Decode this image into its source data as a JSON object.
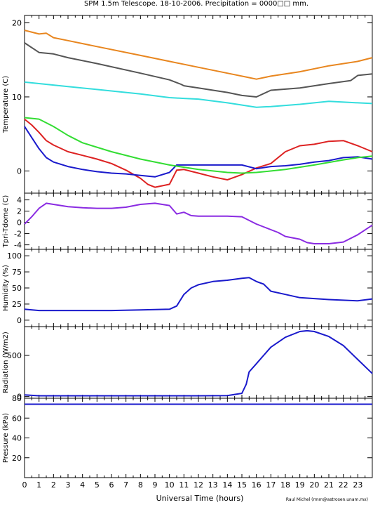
{
  "chart_data": {
    "type": "line",
    "title": "SPM 1.5m Telescope. 18-10-2006. Precipitation = 0000□□ mm.",
    "xlabel": "Universal Time (hours)",
    "credit": "Raul Michel (rmm@astrosen.unam.mx)",
    "xlim": [
      0,
      24
    ],
    "x_ticks": [
      "0",
      "1",
      "2",
      "3",
      "4",
      "5",
      "6",
      "7",
      "8",
      "9",
      "10",
      "11",
      "12",
      "13",
      "14",
      "15",
      "16",
      "17",
      "18",
      "19",
      "20",
      "21",
      "22",
      "23"
    ],
    "panels": [
      {
        "ylabel": "Temperature (C)",
        "ylim": [
          -3,
          21
        ],
        "yticks": [
          0,
          10,
          20
        ],
        "series": [
          {
            "color": "#e8861f",
            "x": [
              0,
              1,
              1.5,
              2,
              3,
              5,
              8,
              10,
              12,
              14,
              15.5,
              16,
              17,
              19,
              21,
              23,
              24
            ],
            "y": [
              19,
              18.5,
              18.6,
              18,
              17.6,
              16.8,
              15.6,
              14.8,
              14,
              13.2,
              12.6,
              12.4,
              12.8,
              13.4,
              14.2,
              14.8,
              15.3
            ]
          },
          {
            "color": "#555555",
            "x": [
              0,
              1,
              1.5,
              2,
              3,
              5,
              8,
              10,
              10.8,
              11,
              12,
              14,
              15,
              16,
              17,
              19,
              21,
              22.5,
              23,
              24
            ],
            "y": [
              17.3,
              16,
              15.9,
              15.8,
              15.3,
              14.5,
              13.2,
              12.3,
              11.7,
              11.5,
              11.2,
              10.6,
              10.2,
              10,
              10.9,
              11.2,
              11.8,
              12.2,
              12.9,
              13.1
            ]
          },
          {
            "color": "#33dddd",
            "x": [
              0,
              1,
              2,
              3,
              5,
              8,
              10,
              11,
              12,
              14,
              16,
              17,
              19,
              21,
              23,
              24
            ],
            "y": [
              12,
              11.8,
              11.6,
              11.4,
              11,
              10.4,
              9.9,
              9.8,
              9.7,
              9.2,
              8.6,
              8.7,
              9,
              9.4,
              9.2,
              9.1
            ]
          },
          {
            "color": "#dd2222",
            "x": [
              0,
              0.5,
              1,
              1.5,
              2,
              3,
              4,
              5,
              6,
              7,
              8,
              8.5,
              9,
              10,
              10.5,
              11,
              12,
              13,
              14,
              15,
              16,
              17,
              18,
              19,
              20,
              21,
              22,
              23,
              24
            ],
            "y": [
              7,
              6.2,
              5.2,
              4.1,
              3.5,
              2.6,
              2.1,
              1.6,
              1,
              0.1,
              -1,
              -1.8,
              -2.2,
              -1.8,
              0.1,
              0.2,
              -0.3,
              -0.8,
              -1.2,
              -0.5,
              0.4,
              1,
              2.6,
              3.4,
              3.6,
              4,
              4.1,
              3.4,
              2.6
            ]
          },
          {
            "color": "#1a1acc",
            "x": [
              0,
              0.5,
              1,
              1.5,
              2,
              3,
              4,
              5,
              6,
              7,
              8,
              9,
              10,
              10.5,
              11,
              12,
              13,
              14,
              15,
              16,
              17,
              18,
              19,
              20,
              21,
              22,
              23,
              24
            ],
            "y": [
              6,
              4.5,
              3,
              1.8,
              1.2,
              0.6,
              0.2,
              -0.1,
              -0.3,
              -0.4,
              -0.6,
              -0.8,
              -0.2,
              0.8,
              0.8,
              0.8,
              0.8,
              0.8,
              0.8,
              0.3,
              0.6,
              0.7,
              0.9,
              1.2,
              1.4,
              1.8,
              1.9,
              1.6
            ]
          },
          {
            "color": "#33dd33",
            "x": [
              0,
              1,
              2,
              3,
              4,
              6,
              8,
              10,
              12,
              14,
              15,
              16,
              18,
              20,
              22,
              23,
              24
            ],
            "y": [
              7.2,
              7,
              6,
              4.8,
              3.8,
              2.6,
              1.6,
              0.8,
              0.2,
              -0.2,
              -0.3,
              -0.2,
              0.2,
              0.8,
              1.5,
              1.8,
              2
            ]
          }
        ]
      },
      {
        "ylabel": "Tpri-Tdome (C)",
        "ylim": [
          -4.8,
          5.2
        ],
        "yticks": [
          -4,
          -2,
          0,
          2,
          4
        ],
        "series": [
          {
            "color": "#8a2be2",
            "x": [
              0,
              0.5,
              1,
              1.5,
              2,
              3,
              4,
              5,
              6,
              7,
              8,
              9,
              10,
              10.5,
              11,
              11.5,
              12,
              13,
              14,
              15,
              16,
              16.5,
              17,
              17.5,
              18,
              19,
              19.5,
              20,
              21,
              22,
              23,
              24
            ],
            "y": [
              -0.3,
              1,
              2.5,
              3.4,
              3.2,
              2.8,
              2.6,
              2.5,
              2.5,
              2.7,
              3.2,
              3.4,
              3,
              1.5,
              1.8,
              1.2,
              1.1,
              1.1,
              1.1,
              1,
              -0.3,
              -0.8,
              -1.3,
              -1.8,
              -2.5,
              -3,
              -3.6,
              -3.8,
              -3.8,
              -3.5,
              -2.2,
              -0.5
            ]
          }
        ]
      },
      {
        "ylabel": "Humidity (%)",
        "ylim": [
          -10,
          110
        ],
        "yticks": [
          0,
          25,
          50,
          75,
          100
        ],
        "series": [
          {
            "color": "#1a1acc",
            "x": [
              0,
              1,
              3,
              6,
              8,
              10,
              10.5,
              11,
              11.5,
              12,
              13,
              14,
              15,
              15.5,
              16,
              16.5,
              17,
              18,
              19,
              21,
              23,
              24
            ],
            "y": [
              17,
              15,
              15,
              15,
              16,
              17,
              22,
              40,
              50,
              55,
              60,
              62,
              65,
              66,
              60,
              56,
              45,
              40,
              35,
              32,
              30,
              33
            ]
          }
        ]
      },
      {
        "ylabel": "Radiation (W/m2)",
        "ylim": [
          -20,
          850
        ],
        "yticks": [
          0,
          500
        ],
        "series": [
          {
            "color": "#1a1acc",
            "x": [
              0,
              1,
              3,
              6,
              9,
              12,
              14,
              15,
              15.3,
              15.5,
              16,
              16.5,
              17,
              18,
              19,
              19.5,
              20,
              21,
              22,
              23,
              24
            ],
            "y": [
              20,
              10,
              10,
              10,
              10,
              10,
              12,
              40,
              150,
              300,
              400,
              500,
              600,
              720,
              790,
              800,
              790,
              730,
              620,
              450,
              280
            ]
          }
        ]
      },
      {
        "ylabel": "Pressure (kPa)",
        "ylim": [
          0,
          80
        ],
        "yticks": [
          20,
          40,
          60,
          80
        ],
        "series": [
          {
            "color": "#1a1acc",
            "x": [
              0,
              4,
              8,
              12,
              16,
              20,
              24
            ],
            "y": [
              74,
              74,
              74,
              74,
              74,
              74,
              74
            ]
          }
        ]
      }
    ]
  }
}
